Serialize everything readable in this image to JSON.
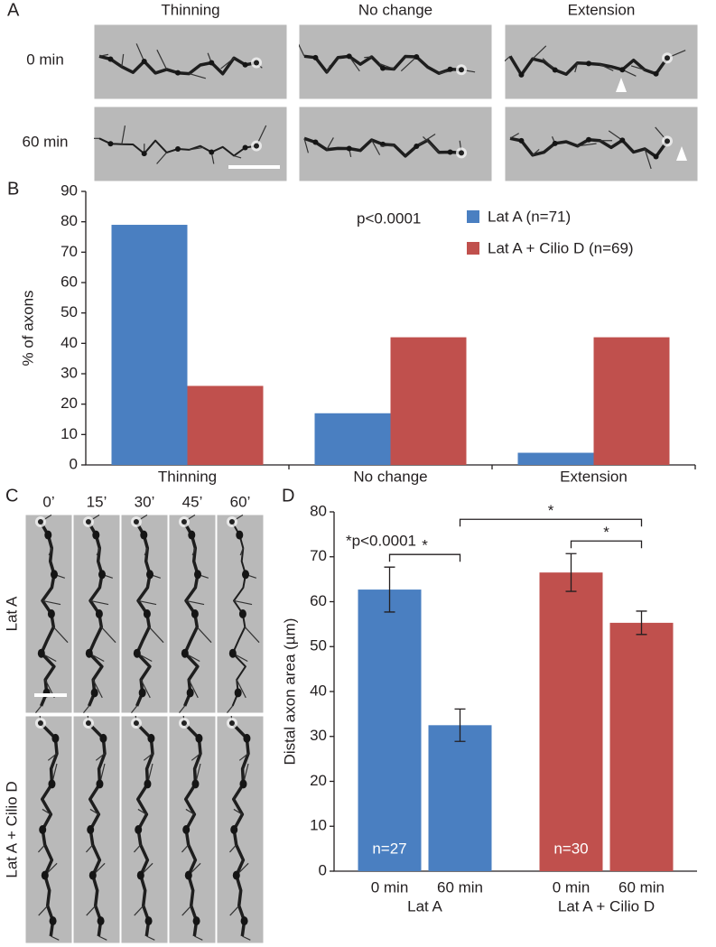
{
  "panel_labels": [
    "A",
    "B",
    "C",
    "D"
  ],
  "panel_a": {
    "columns": [
      "Thinning",
      "No change",
      "Extension"
    ],
    "rows": [
      "0 min",
      "60 min"
    ]
  },
  "panel_c": {
    "times": [
      "0’",
      "15’",
      "30’",
      "45’",
      "60’"
    ],
    "rows": [
      "Lat A",
      "Lat A + Cilio D"
    ]
  },
  "chart_data": [
    {
      "type": "bar",
      "ylabel": "% of axons",
      "annotation": "p<0.0001",
      "categories": [
        "Thinning",
        "No change",
        "Extension"
      ],
      "series": [
        {
          "name": "Lat A (n=71)",
          "color": "#4a7fc1",
          "values": [
            79,
            17,
            4
          ]
        },
        {
          "name": "Lat A + Cilio D (n=69)",
          "color": "#c0504d",
          "values": [
            26,
            42,
            42
          ]
        }
      ],
      "ylim": [
        0,
        90
      ],
      "yticks": [
        0,
        10,
        20,
        30,
        40,
        50,
        60,
        70,
        80,
        90
      ],
      "grid": false,
      "legend": "top-right"
    },
    {
      "type": "errorbar",
      "ylabel": "Distal axon area (µm)",
      "annotation": "*p<0.0001",
      "categories": [
        "0 min",
        "60 min"
      ],
      "series": [
        {
          "name": "Lat A",
          "color": "#4a7fc1",
          "values": [
            62.7,
            32.5
          ],
          "errors": [
            5.0,
            3.6
          ],
          "n_label": "n=27"
        },
        {
          "name": "Lat A + Cilio D",
          "color": "#c0504d",
          "values": [
            66.5,
            55.3
          ],
          "errors": [
            4.2,
            2.6
          ],
          "n_label": "n=30"
        }
      ],
      "comparisons": [
        {
          "from": [
            0,
            0
          ],
          "to": [
            0,
            1
          ],
          "label": "*"
        },
        {
          "from": [
            1,
            0
          ],
          "to": [
            1,
            1
          ],
          "label": "*"
        },
        {
          "from": [
            0,
            1
          ],
          "to": [
            1,
            1
          ],
          "label": "*"
        }
      ],
      "ylim": [
        0,
        80
      ],
      "yticks": [
        0,
        10,
        20,
        30,
        40,
        50,
        60,
        70,
        80
      ],
      "grid": false
    }
  ]
}
